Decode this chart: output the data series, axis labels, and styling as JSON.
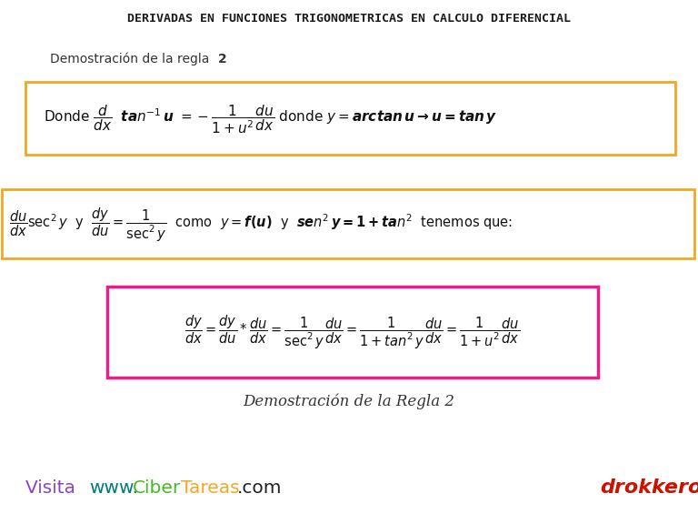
{
  "title": "DERIVADAS EN FUNCIONES TRIGONOMETRICAS EN CALCULO DIFERENCIAL",
  "title_color": "#1a1a1a",
  "bg_color": "#ffffff",
  "subtitle1": "Demostración de la regla ",
  "subtitle1_bold": "2",
  "box1_border": "#f5a623",
  "box2_border": "#f5a623",
  "box3_border": "#e91e8c",
  "subtitle2": "Demostración de la Regla 2",
  "footer_purple": "#8b44c8",
  "footer_teal": "#007b7b",
  "footer_green": "#44bb22",
  "footer_orange": "#f5a623",
  "footer_dark": "#222222",
  "logo_red": "#cc1100",
  "logo_teal": "#006666"
}
